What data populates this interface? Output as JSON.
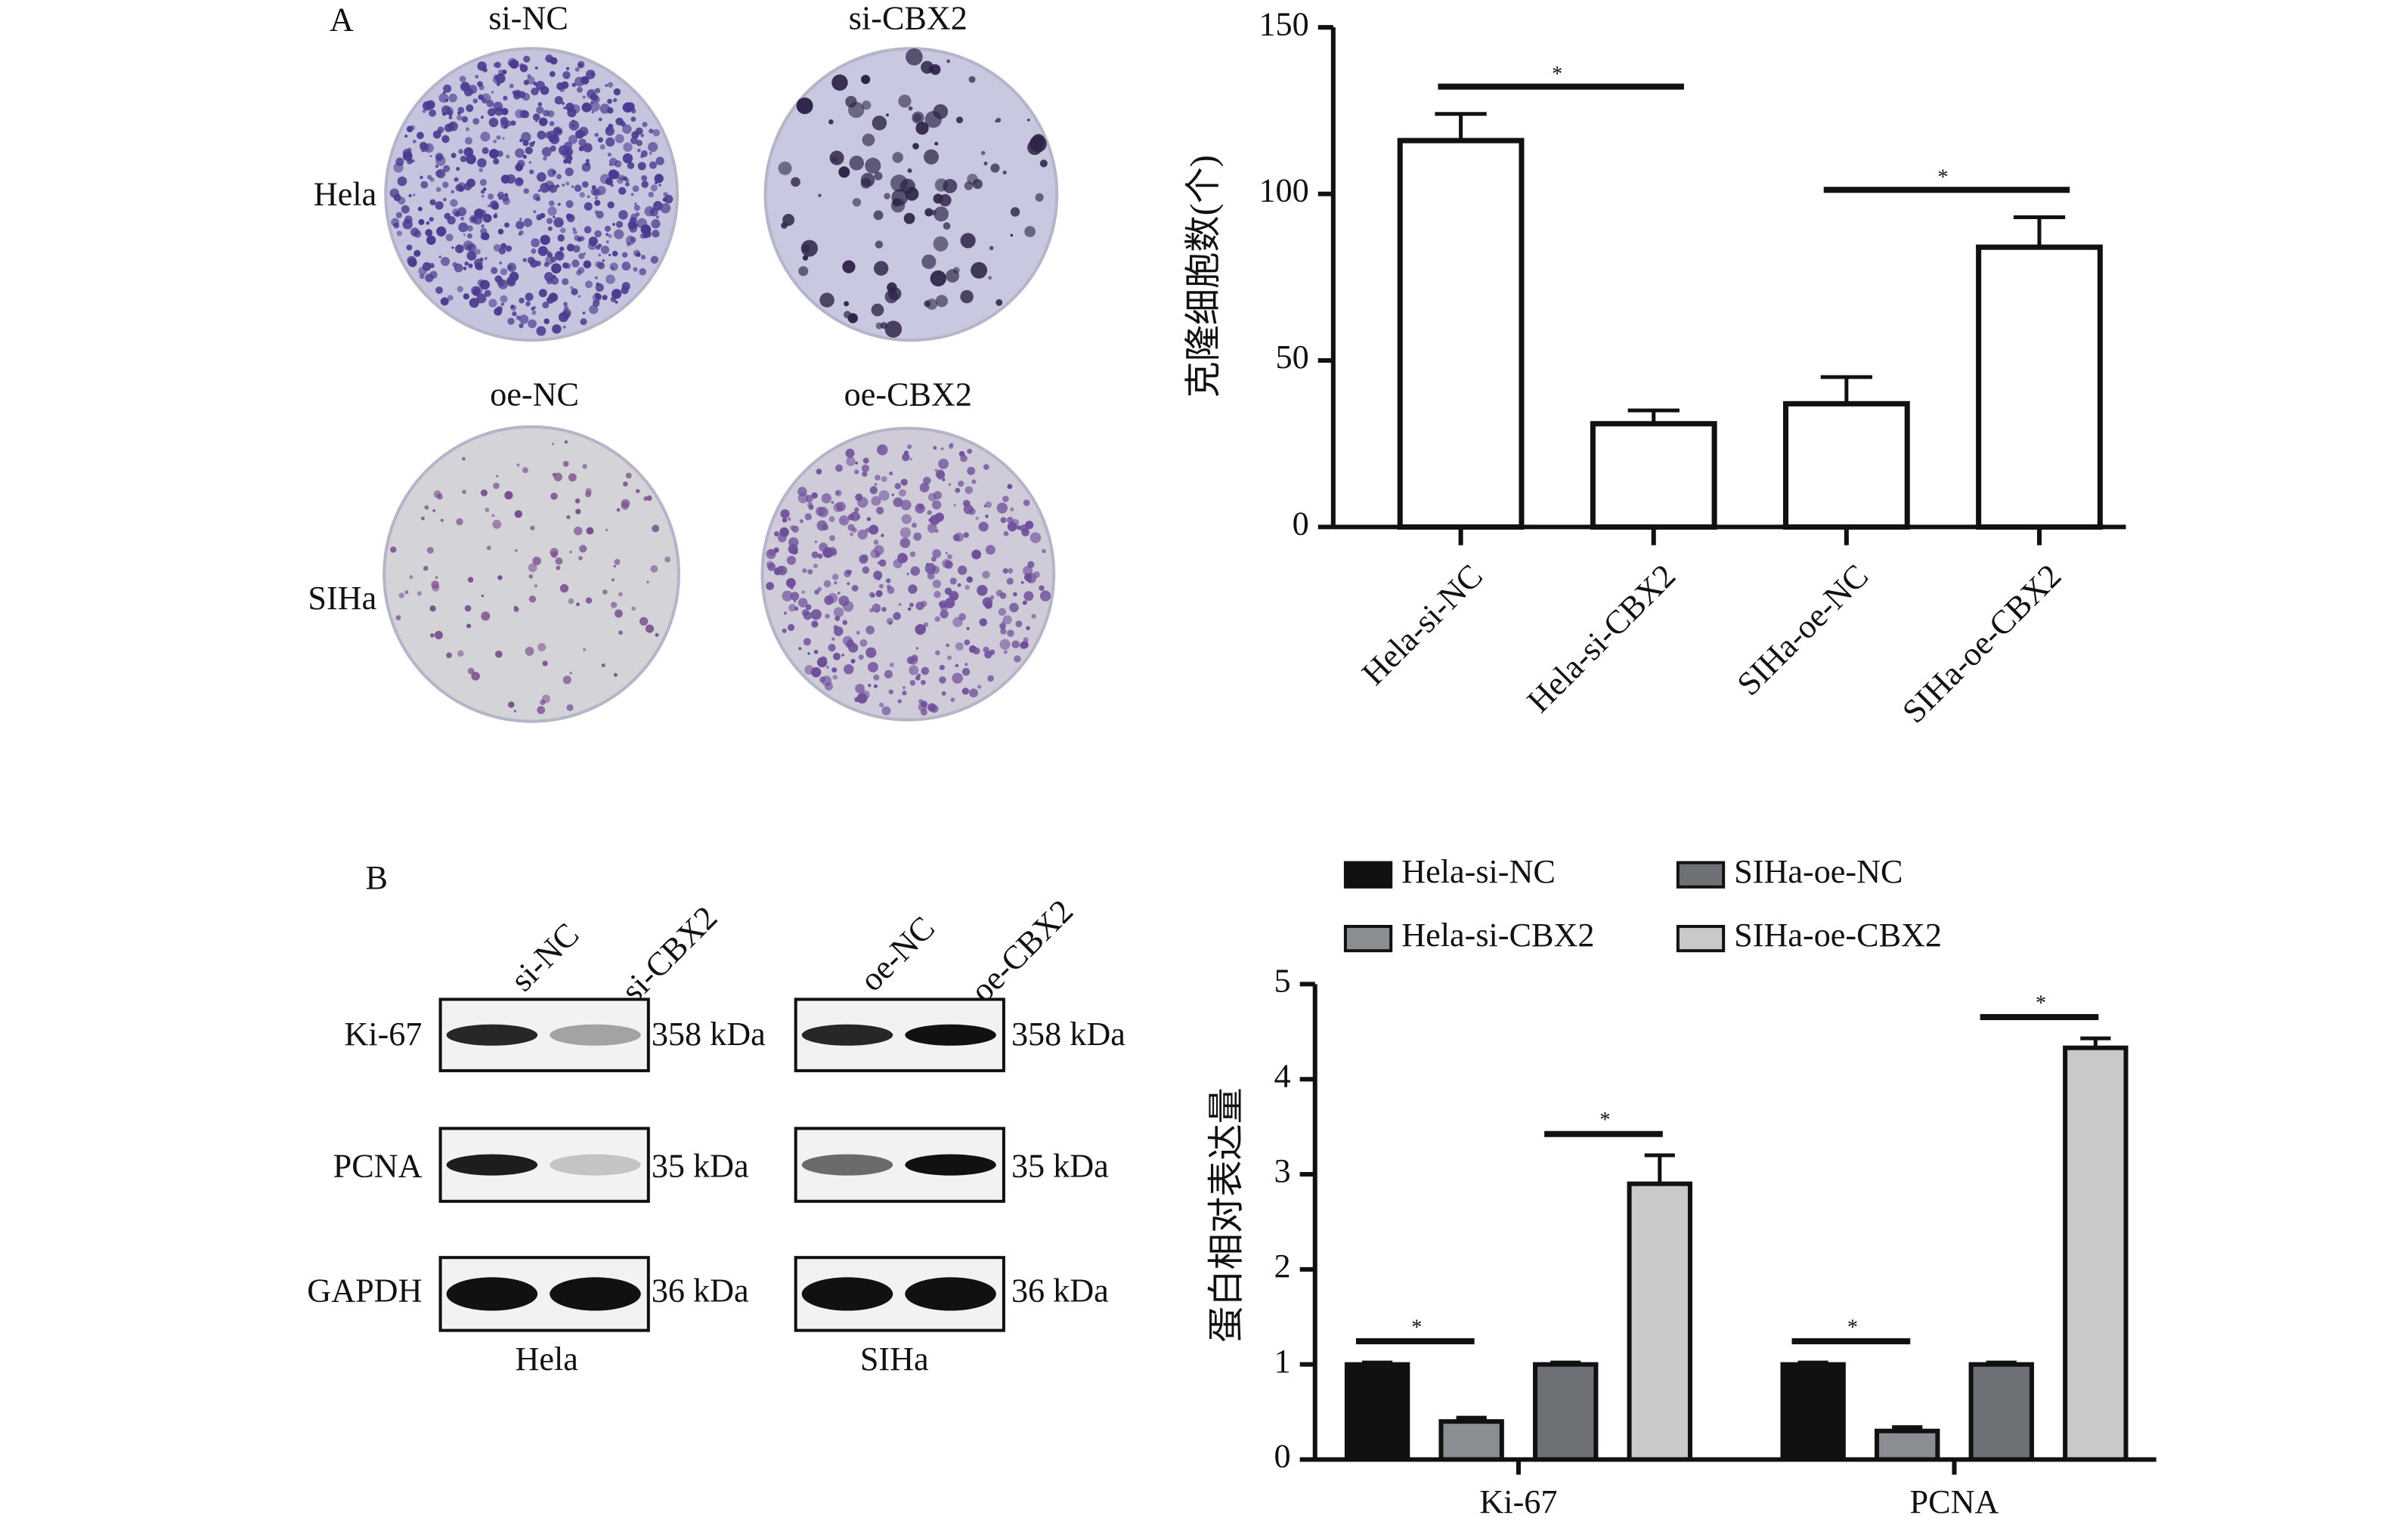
{
  "panel_a": {
    "label": "A",
    "top_columns": [
      "si-NC",
      "si-CBX2"
    ],
    "top_row": "Hela",
    "bottom_columns": [
      "oe-NC",
      "oe-CBX2"
    ],
    "bottom_row": "SIHa"
  },
  "panel_b": {
    "label": "B",
    "proteins": [
      "Ki-67",
      "PCNA",
      "GAPDH"
    ],
    "hela": {
      "lanes": [
        "si-NC",
        "si-CBX2"
      ],
      "cell": "Hela",
      "sizes": [
        "358 kDa",
        "35 kDa",
        "36 kDa"
      ]
    },
    "siha": {
      "lanes": [
        "oe-NC",
        "oe-CBX2"
      ],
      "cell": "SIHa",
      "sizes": [
        "358 kDa",
        "35 kDa",
        "36 kDa"
      ]
    }
  },
  "chart_data": [
    {
      "type": "bar",
      "ylabel": "克隆细胞数(个)",
      "categories": [
        "Hela-si-NC",
        "Hela-si-CBX2",
        "SIHa-oe-NC",
        "SIHa-oe-CBX2"
      ],
      "values": [
        116,
        31,
        37,
        84
      ],
      "errors": [
        8,
        4,
        8,
        9
      ],
      "color": "#ffffff",
      "ylim": [
        0,
        150
      ],
      "yticks": [
        0,
        50,
        100,
        150
      ],
      "annotations": [
        {
          "text": "*",
          "between": [
            "Hela-si-NC",
            "Hela-si-CBX2"
          ]
        },
        {
          "text": "*",
          "between": [
            "SIHa-oe-NC",
            "SIHa-oe-CBX2"
          ]
        }
      ]
    },
    {
      "type": "grouped_bar",
      "ylabel": "蛋白相对表达量",
      "categories": [
        "Ki-67",
        "PCNA"
      ],
      "legend": "top",
      "series": [
        {
          "name": "Hela-si-NC",
          "color": "#111111",
          "values": [
            1.0,
            1.0
          ],
          "errors": [
            0.02,
            0.02
          ]
        },
        {
          "name": "Hela-si-CBX2",
          "color": "#8a8d92",
          "values": [
            0.4,
            0.3
          ],
          "errors": [
            0.04,
            0.04
          ]
        },
        {
          "name": "SIHa-oe-NC",
          "color": "#6d7075",
          "values": [
            1.0,
            1.0
          ],
          "errors": [
            0.02,
            0.02
          ]
        },
        {
          "name": "SIHa-oe-CBX2",
          "color": "#c8cac9",
          "values": [
            2.9,
            4.33
          ],
          "errors": [
            0.3,
            0.1
          ]
        }
      ],
      "ylim": [
        0,
        5
      ],
      "yticks": [
        0,
        1,
        2,
        3,
        4,
        5
      ],
      "annotations": [
        {
          "text": "*",
          "category": "Ki-67",
          "between": [
            "Hela-si-NC",
            "Hela-si-CBX2"
          ]
        },
        {
          "text": "*",
          "category": "Ki-67",
          "between": [
            "SIHa-oe-NC",
            "SIHa-oe-CBX2"
          ]
        },
        {
          "text": "*",
          "category": "PCNA",
          "between": [
            "Hela-si-NC",
            "Hela-si-CBX2"
          ]
        },
        {
          "text": "*",
          "category": "PCNA",
          "between": [
            "SIHa-oe-NC",
            "SIHa-oe-CBX2"
          ]
        }
      ]
    }
  ]
}
